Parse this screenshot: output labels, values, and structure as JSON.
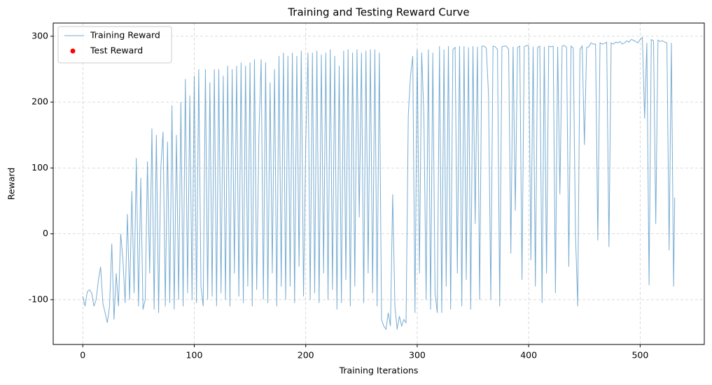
{
  "chart_data": {
    "type": "line",
    "title": "Training and Testing Reward Curve",
    "x_label": "Training Iterations",
    "y_label": "Reward",
    "xlim": [
      -26.55,
      557.55
    ],
    "ylim": [
      -168,
      320
    ],
    "xticks": [
      0,
      100,
      200,
      300,
      400,
      500
    ],
    "yticks": [
      -100,
      0,
      100,
      200,
      300
    ],
    "grid": true,
    "legend": "upper left",
    "series": [
      {
        "name": "Training Reward",
        "type": "line",
        "color": "#1f77b4",
        "x": [
          0,
          2,
          4,
          6,
          8,
          10,
          12,
          14,
          16,
          18,
          20,
          22,
          24,
          26,
          28,
          30,
          32,
          34,
          36,
          38,
          40,
          42,
          44,
          46,
          48,
          50,
          52,
          54,
          56,
          58,
          60,
          62,
          64,
          66,
          68,
          70,
          72,
          74,
          76,
          78,
          80,
          82,
          84,
          86,
          88,
          90,
          92,
          94,
          96,
          98,
          100,
          102,
          104,
          106,
          108,
          110,
          112,
          114,
          116,
          118,
          120,
          122,
          124,
          126,
          128,
          130,
          132,
          134,
          136,
          138,
          140,
          142,
          144,
          146,
          148,
          150,
          152,
          154,
          156,
          158,
          160,
          162,
          164,
          166,
          168,
          170,
          172,
          174,
          176,
          178,
          180,
          182,
          184,
          186,
          188,
          190,
          192,
          194,
          196,
          198,
          200,
          202,
          204,
          206,
          208,
          210,
          212,
          214,
          216,
          218,
          220,
          222,
          224,
          226,
          228,
          230,
          232,
          234,
          236,
          238,
          240,
          242,
          244,
          246,
          248,
          250,
          252,
          254,
          256,
          258,
          260,
          262,
          264,
          266,
          268,
          270,
          272,
          274,
          276,
          278,
          280,
          282,
          284,
          286,
          288,
          290,
          292,
          294,
          296,
          298,
          300,
          302,
          304,
          306,
          308,
          310,
          312,
          314,
          316,
          318,
          320,
          322,
          324,
          326,
          328,
          330,
          332,
          334,
          336,
          338,
          340,
          342,
          344,
          346,
          348,
          350,
          352,
          354,
          356,
          358,
          360,
          362,
          364,
          366,
          368,
          370,
          372,
          374,
          376,
          378,
          380,
          382,
          384,
          386,
          388,
          390,
          392,
          394,
          396,
          398,
          400,
          402,
          404,
          406,
          408,
          410,
          412,
          414,
          416,
          418,
          420,
          422,
          424,
          426,
          428,
          430,
          432,
          434,
          436,
          438,
          440,
          442,
          444,
          446,
          448,
          450,
          452,
          454,
          456,
          458,
          460,
          462,
          464,
          466,
          468,
          470,
          472,
          474,
          476,
          478,
          480,
          482,
          484,
          486,
          488,
          490,
          492,
          494,
          496,
          498,
          500,
          502,
          504,
          506,
          508,
          510,
          512,
          514,
          516,
          518,
          520,
          522,
          524,
          526,
          528,
          530,
          531
        ],
        "values": [
          -95,
          -110,
          -88,
          -85,
          -90,
          -110,
          -100,
          -70,
          -50,
          -105,
          -120,
          -135,
          -110,
          -15,
          -130,
          -60,
          -110,
          0,
          -40,
          -105,
          30,
          -100,
          65,
          -90,
          115,
          -110,
          85,
          -115,
          -100,
          110,
          -60,
          160,
          -115,
          150,
          -120,
          100,
          155,
          -110,
          140,
          -105,
          195,
          -115,
          150,
          -100,
          200,
          -110,
          235,
          -90,
          210,
          -100,
          240,
          -105,
          250,
          -80,
          -110,
          250,
          -100,
          230,
          -95,
          250,
          -110,
          250,
          -90,
          240,
          -100,
          255,
          -110,
          250,
          -60,
          255,
          -95,
          260,
          -105,
          255,
          -80,
          260,
          -110,
          265,
          -85,
          150,
          265,
          -100,
          260,
          -105,
          230,
          -60,
          250,
          -110,
          270,
          -80,
          275,
          -100,
          270,
          -80,
          275,
          -105,
          270,
          -50,
          278,
          -95,
          138,
          275,
          -100,
          275,
          -90,
          278,
          -105,
          272,
          -60,
          275,
          -100,
          280,
          -85,
          270,
          -115,
          255,
          -105,
          278,
          -70,
          280,
          -110,
          275,
          -80,
          280,
          25,
          275,
          -105,
          278,
          -60,
          280,
          -90,
          280,
          -110,
          275,
          -130,
          -140,
          -145,
          -120,
          -140,
          60,
          -110,
          -145,
          -125,
          -140,
          -130,
          -135,
          180,
          240,
          270,
          -120,
          280,
          -60,
          275,
          180,
          -100,
          280,
          -115,
          275,
          -90,
          -120,
          285,
          -120,
          280,
          -80,
          285,
          -115,
          280,
          283,
          -60,
          285,
          -110,
          285,
          -70,
          283,
          -115,
          285,
          15,
          284,
          -100,
          285,
          285,
          282,
          210,
          -100,
          285,
          284,
          280,
          -110,
          284,
          285,
          285,
          280,
          -30,
          284,
          35,
          283,
          285,
          -70,
          284,
          286,
          285,
          -40,
          284,
          -80,
          283,
          285,
          -105,
          284,
          -60,
          285,
          284,
          285,
          -90,
          284,
          60,
          285,
          286,
          283,
          -50,
          285,
          282,
          0,
          -110,
          280,
          285,
          135,
          283,
          284,
          290,
          288,
          288,
          -10,
          290,
          288,
          289,
          291,
          -20,
          290,
          288,
          291,
          290,
          292,
          288,
          290,
          293,
          291,
          295,
          294,
          292,
          290,
          295,
          298,
          175,
          290,
          -78,
          295,
          293,
          15,
          294,
          292,
          293,
          291,
          290,
          -25,
          290,
          -80,
          55
        ]
      },
      {
        "name": "Test Reward",
        "type": "scatter",
        "color": "#ff0000",
        "x": [],
        "values": []
      }
    ]
  }
}
